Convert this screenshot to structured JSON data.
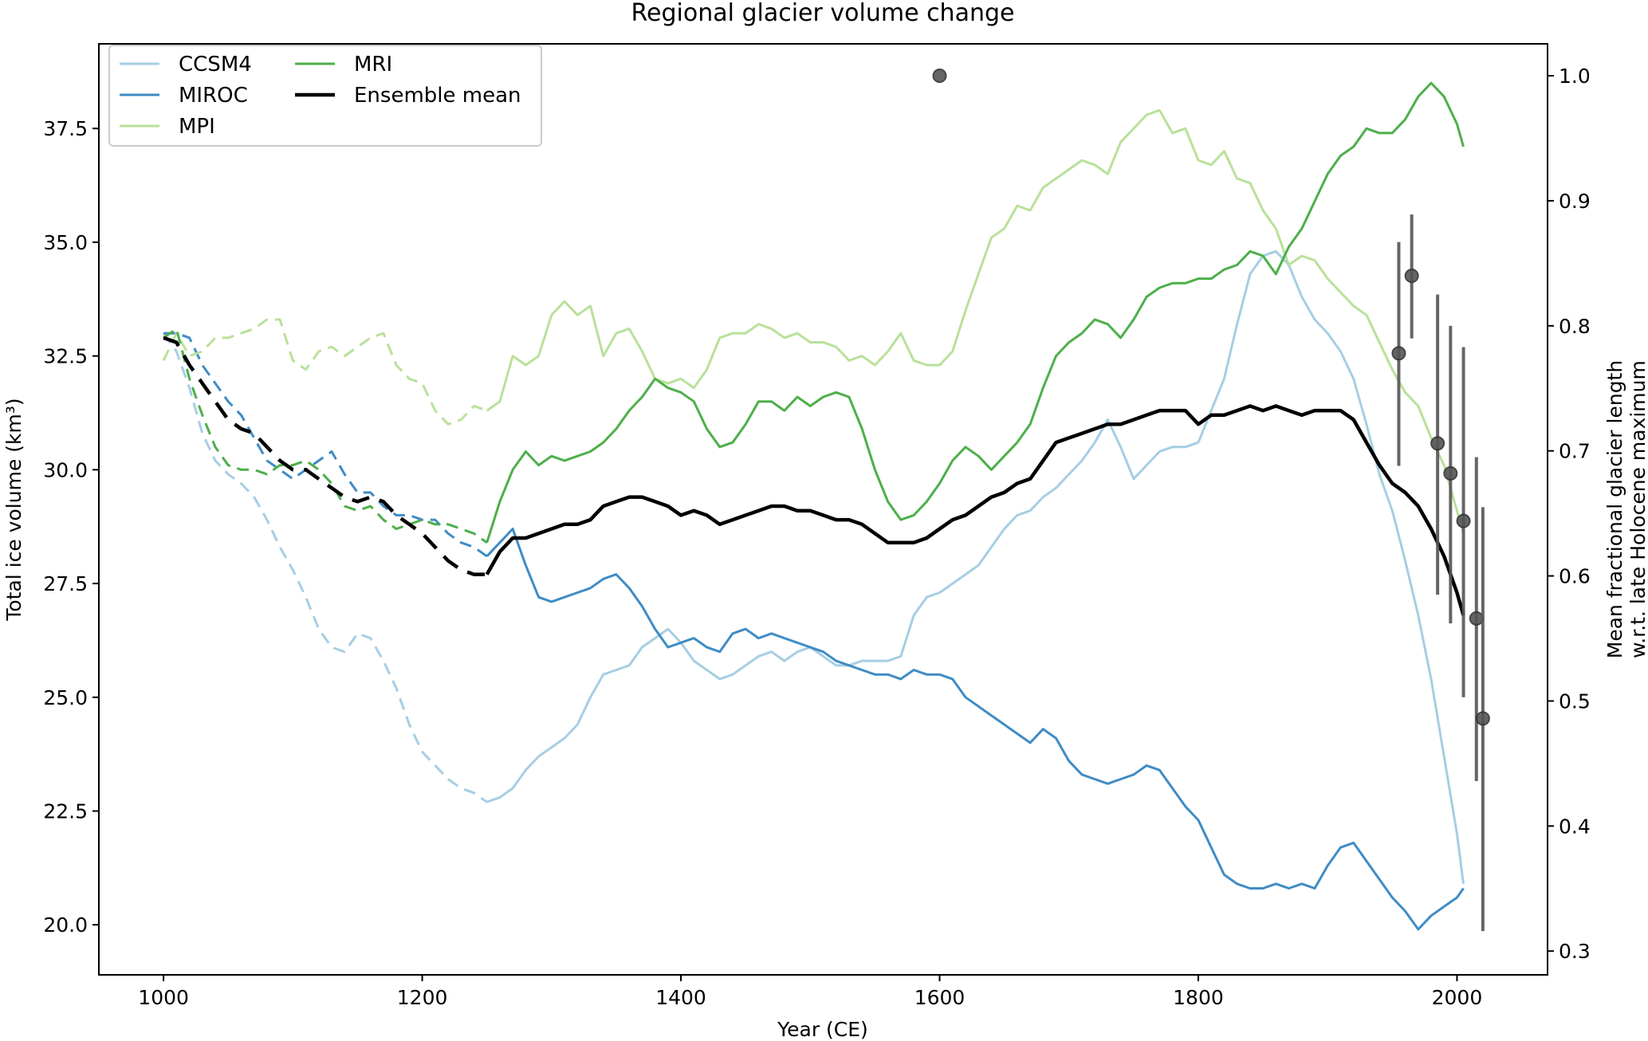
{
  "chart_data": {
    "type": "line",
    "title": "Regional glacier volume change",
    "xlabel": "Year (CE)",
    "ylabel": "Total ice volume (km³)",
    "y2label_line1": "Mean fractional glacier length",
    "y2label_line2": "w.r.t. late Holocene maximum",
    "xlim": [
      950,
      2070
    ],
    "ylim": [
      18.9,
      39.36
    ],
    "y2lim": [
      0.281,
      1.0255
    ],
    "xticks": [
      1000,
      1200,
      1400,
      1600,
      1800,
      2000
    ],
    "yticks": [
      "20.0",
      "22.5",
      "25.0",
      "27.5",
      "30.0",
      "32.5",
      "35.0",
      "37.5"
    ],
    "y2ticks": [
      "0.3",
      "0.4",
      "0.5",
      "0.6",
      "0.7",
      "0.8",
      "0.9",
      "1.0"
    ],
    "grid": false,
    "legend_position": "top-left",
    "dashed_until_year": 1255,
    "x": [
      1000,
      1010,
      1020,
      1030,
      1040,
      1050,
      1060,
      1070,
      1080,
      1090,
      1100,
      1110,
      1120,
      1130,
      1140,
      1150,
      1160,
      1170,
      1180,
      1190,
      1200,
      1210,
      1220,
      1230,
      1240,
      1250,
      1260,
      1270,
      1280,
      1290,
      1300,
      1310,
      1320,
      1330,
      1340,
      1350,
      1360,
      1370,
      1380,
      1390,
      1400,
      1410,
      1420,
      1430,
      1440,
      1450,
      1460,
      1470,
      1480,
      1490,
      1500,
      1510,
      1520,
      1530,
      1540,
      1550,
      1560,
      1570,
      1580,
      1590,
      1600,
      1610,
      1620,
      1630,
      1640,
      1650,
      1660,
      1670,
      1680,
      1690,
      1700,
      1710,
      1720,
      1730,
      1740,
      1750,
      1760,
      1770,
      1780,
      1790,
      1800,
      1810,
      1820,
      1830,
      1840,
      1850,
      1860,
      1870,
      1880,
      1890,
      1900,
      1910,
      1920,
      1930,
      1940,
      1950,
      1960,
      1970,
      1980,
      1990,
      2000,
      2005
    ],
    "series": [
      {
        "name": "CCSM4",
        "color": "#a6cee3",
        "width": 3,
        "values": [
          33.0,
          32.6,
          31.8,
          30.8,
          30.2,
          29.9,
          29.7,
          29.4,
          28.9,
          28.3,
          27.8,
          27.2,
          26.5,
          26.1,
          26.0,
          26.4,
          26.3,
          25.8,
          25.2,
          24.4,
          23.8,
          23.5,
          23.2,
          23.0,
          22.9,
          22.7,
          22.8,
          23.0,
          23.4,
          23.7,
          23.9,
          24.1,
          24.4,
          25.0,
          25.5,
          25.6,
          25.7,
          26.1,
          26.3,
          26.5,
          26.2,
          25.8,
          25.6,
          25.4,
          25.5,
          25.7,
          25.9,
          26.0,
          25.8,
          26.0,
          26.1,
          25.9,
          25.7,
          25.7,
          25.8,
          25.8,
          25.8,
          25.9,
          26.8,
          27.2,
          27.3,
          27.5,
          27.7,
          27.9,
          28.3,
          28.7,
          29.0,
          29.1,
          29.4,
          29.6,
          29.9,
          30.2,
          30.6,
          31.1,
          30.5,
          29.8,
          30.1,
          30.4,
          30.5,
          30.5,
          30.6,
          31.3,
          32.0,
          33.2,
          34.3,
          34.7,
          34.8,
          34.5,
          33.8,
          33.3,
          33.0,
          32.6,
          32.0,
          31.0,
          29.9,
          29.1,
          28.0,
          26.8,
          25.4,
          23.7,
          22.0,
          20.9
        ]
      },
      {
        "name": "MIROC",
        "color": "#3f8cc5",
        "width": 3,
        "values": [
          33.0,
          33.0,
          32.9,
          32.3,
          31.9,
          31.5,
          31.2,
          30.7,
          30.2,
          30.0,
          29.8,
          30.0,
          30.2,
          30.4,
          29.9,
          29.5,
          29.5,
          29.2,
          29.0,
          29.0,
          28.9,
          28.9,
          28.6,
          28.4,
          28.3,
          28.1,
          28.4,
          28.7,
          27.9,
          27.2,
          27.1,
          27.2,
          27.3,
          27.4,
          27.6,
          27.7,
          27.4,
          27.0,
          26.5,
          26.1,
          26.2,
          26.3,
          26.1,
          26.0,
          26.4,
          26.5,
          26.3,
          26.4,
          26.3,
          26.2,
          26.1,
          26.0,
          25.8,
          25.7,
          25.6,
          25.5,
          25.5,
          25.4,
          25.6,
          25.5,
          25.5,
          25.4,
          25.0,
          24.8,
          24.6,
          24.4,
          24.2,
          24.0,
          24.3,
          24.1,
          23.6,
          23.3,
          23.2,
          23.1,
          23.2,
          23.3,
          23.5,
          23.4,
          23.0,
          22.6,
          22.3,
          21.7,
          21.1,
          20.9,
          20.8,
          20.8,
          20.9,
          20.8,
          20.9,
          20.8,
          21.3,
          21.7,
          21.8,
          21.4,
          21.0,
          20.6,
          20.3,
          19.9,
          20.2,
          20.4,
          20.6,
          20.8
        ]
      },
      {
        "name": "MPI",
        "color": "#b9e19a",
        "width": 3,
        "values": [
          32.4,
          33.0,
          32.5,
          32.6,
          32.9,
          32.9,
          33.0,
          33.1,
          33.3,
          33.3,
          32.4,
          32.2,
          32.6,
          32.7,
          32.5,
          32.7,
          32.9,
          33.0,
          32.3,
          32.0,
          31.9,
          31.3,
          31.0,
          31.1,
          31.4,
          31.3,
          31.5,
          32.5,
          32.3,
          32.5,
          33.4,
          33.7,
          33.4,
          33.6,
          32.5,
          33.0,
          33.1,
          32.6,
          32.0,
          31.9,
          32.0,
          31.8,
          32.2,
          32.9,
          33.0,
          33.0,
          33.2,
          33.1,
          32.9,
          33.0,
          32.8,
          32.8,
          32.7,
          32.4,
          32.5,
          32.3,
          32.6,
          33.0,
          32.4,
          32.3,
          32.3,
          32.6,
          33.5,
          34.3,
          35.1,
          35.3,
          35.8,
          35.7,
          36.2,
          36.4,
          36.6,
          36.8,
          36.7,
          36.5,
          37.2,
          37.5,
          37.8,
          37.9,
          37.4,
          37.5,
          36.8,
          36.7,
          37.0,
          36.4,
          36.3,
          35.7,
          35.3,
          34.5,
          34.7,
          34.6,
          34.2,
          33.9,
          33.6,
          33.4,
          32.8,
          32.2,
          31.7,
          31.4,
          30.7,
          30.1,
          29.1,
          28.6
        ]
      },
      {
        "name": "MRI",
        "color": "#4daf4a",
        "width": 3,
        "values": [
          32.9,
          33.1,
          32.0,
          31.2,
          30.5,
          30.1,
          30.0,
          30.0,
          29.9,
          30.1,
          30.1,
          30.2,
          30.0,
          29.7,
          29.2,
          29.1,
          29.2,
          28.9,
          28.7,
          28.8,
          28.9,
          28.8,
          28.8,
          28.7,
          28.6,
          28.4,
          29.3,
          30.0,
          30.4,
          30.1,
          30.3,
          30.2,
          30.3,
          30.4,
          30.6,
          30.9,
          31.3,
          31.6,
          32.0,
          31.8,
          31.7,
          31.5,
          30.9,
          30.5,
          30.6,
          31.0,
          31.5,
          31.5,
          31.3,
          31.6,
          31.4,
          31.6,
          31.7,
          31.6,
          30.9,
          30.0,
          29.3,
          28.9,
          29.0,
          29.3,
          29.7,
          30.2,
          30.5,
          30.3,
          30.0,
          30.3,
          30.6,
          31.0,
          31.8,
          32.5,
          32.8,
          33.0,
          33.3,
          33.2,
          32.9,
          33.3,
          33.8,
          34.0,
          34.1,
          34.1,
          34.2,
          34.2,
          34.4,
          34.5,
          34.8,
          34.7,
          34.3,
          34.9,
          35.3,
          35.9,
          36.5,
          36.9,
          37.1,
          37.5,
          37.4,
          37.4,
          37.7,
          38.2,
          38.5,
          38.2,
          37.6,
          37.1
        ]
      },
      {
        "name": "Ensemble mean",
        "color": "#000000",
        "width": 4.5,
        "values": [
          32.9,
          32.8,
          32.3,
          31.9,
          31.5,
          31.1,
          30.9,
          30.8,
          30.5,
          30.2,
          30.0,
          30.0,
          29.8,
          29.6,
          29.4,
          29.3,
          29.4,
          29.3,
          29.0,
          28.8,
          28.6,
          28.3,
          28.0,
          27.8,
          27.7,
          27.7,
          28.2,
          28.5,
          28.5,
          28.6,
          28.7,
          28.8,
          28.8,
          28.9,
          29.2,
          29.3,
          29.4,
          29.4,
          29.3,
          29.2,
          29.0,
          29.1,
          29.0,
          28.8,
          28.9,
          29.0,
          29.1,
          29.2,
          29.2,
          29.1,
          29.1,
          29.0,
          28.9,
          28.9,
          28.8,
          28.6,
          28.4,
          28.4,
          28.4,
          28.5,
          28.7,
          28.9,
          29.0,
          29.2,
          29.4,
          29.5,
          29.7,
          29.8,
          30.2,
          30.6,
          30.7,
          30.8,
          30.9,
          31.0,
          31.0,
          31.1,
          31.2,
          31.3,
          31.3,
          31.3,
          31.0,
          31.2,
          31.2,
          31.3,
          31.4,
          31.3,
          31.4,
          31.3,
          31.2,
          31.3,
          31.3,
          31.3,
          31.1,
          30.6,
          30.1,
          29.7,
          29.5,
          29.2,
          28.7,
          28.1,
          27.3,
          26.8
        ]
      }
    ],
    "observations": {
      "axis": "right",
      "color": "#555555",
      "points": [
        {
          "x": 1600,
          "y": 1.0
        },
        {
          "x": 1955,
          "y": 0.778,
          "low": 0.688,
          "high": 0.867
        },
        {
          "x": 1965,
          "y": 0.84,
          "low": 0.79,
          "high": 0.889
        },
        {
          "x": 1985,
          "y": 0.706,
          "low": 0.585,
          "high": 0.825
        },
        {
          "x": 1995,
          "y": 0.682,
          "low": 0.562,
          "high": 0.8
        },
        {
          "x": 2005,
          "y": 0.644,
          "low": 0.503,
          "high": 0.783
        },
        {
          "x": 2015,
          "y": 0.566,
          "low": 0.436,
          "high": 0.695
        },
        {
          "x": 2020,
          "y": 0.486,
          "low": 0.316,
          "high": 0.655
        }
      ]
    }
  }
}
